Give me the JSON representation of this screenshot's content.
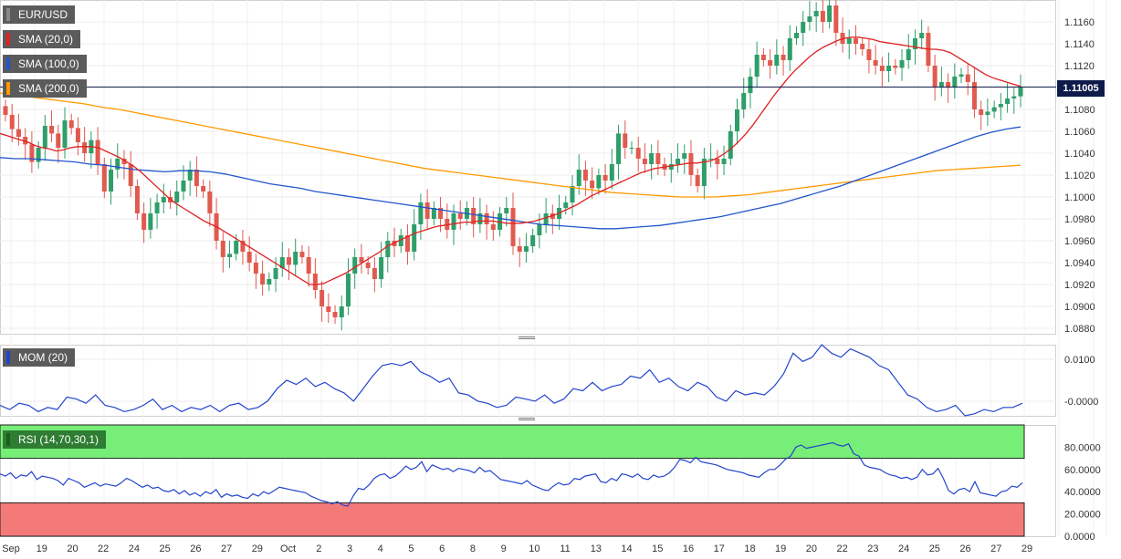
{
  "chart_data": {
    "type": "candlestick",
    "symbol": "EUR/USD",
    "indicators": [
      {
        "label": "SMA (20,0)",
        "color": "#e02020"
      },
      {
        "label": "SMA (100,0)",
        "color": "#2255cc"
      },
      {
        "label": "SMA (200,0)",
        "color": "#ff9900"
      }
    ],
    "last_price": "1.11005",
    "x_ticks": [
      "Sep",
      "19",
      "20",
      "22",
      "24",
      "25",
      "26",
      "27",
      "29",
      "Oct",
      "2",
      "3",
      "4",
      "5",
      "6",
      "8",
      "9",
      "10",
      "11",
      "13",
      "14",
      "15",
      "16",
      "17",
      "18",
      "19",
      "20",
      "22",
      "23",
      "24",
      "25",
      "26",
      "27",
      "29"
    ],
    "y_ticks": [
      "1.1160",
      "1.1140",
      "1.1120",
      "1.1100",
      "1.1080",
      "1.1060",
      "1.1040",
      "1.1020",
      "1.1000",
      "1.0980",
      "1.0960",
      "1.0940",
      "1.0920",
      "1.0900",
      "1.0880"
    ],
    "ylim": [
      1.0875,
      1.118
    ],
    "close": [
      1.1075,
      1.1062,
      1.1055,
      1.1048,
      1.1032,
      1.1045,
      1.1065,
      1.1058,
      1.1045,
      1.107,
      1.1063,
      1.105,
      1.104,
      1.1052,
      1.103,
      1.1005,
      1.1025,
      1.1035,
      1.103,
      1.101,
      1.0985,
      1.097,
      1.0985,
      1.0995,
      1.1,
      1.0995,
      1.1005,
      1.1015,
      1.1025,
      1.101,
      1.1005,
      1.0985,
      1.096,
      1.0945,
      1.0948,
      1.096,
      1.095,
      1.094,
      1.093,
      1.092,
      1.0925,
      1.0935,
      1.0945,
      1.0938,
      1.095,
      1.0945,
      1.093,
      1.0915,
      1.09,
      1.0895,
      1.089,
      1.09,
      1.093,
      1.0945,
      1.094,
      1.0935,
      1.0925,
      1.0945,
      1.096,
      1.0955,
      1.0965,
      1.095,
      1.0975,
      1.0995,
      1.098,
      1.099,
      1.098,
      1.097,
      1.0985,
      1.098,
      1.099,
      1.0975,
      1.0985,
      1.0975,
      1.097,
      1.0985,
      1.099,
      1.0955,
      1.095,
      1.0955,
      1.0965,
      1.0975,
      1.0985,
      1.098,
      1.099,
      1.0995,
      1.101,
      1.1025,
      1.1015,
      1.1008,
      1.102,
      1.1015,
      1.103,
      1.1058,
      1.1045,
      1.1045,
      1.1035,
      1.103,
      1.104,
      1.103,
      1.1025,
      1.103,
      1.1035,
      1.104,
      1.102,
      1.101,
      1.1035,
      1.1035,
      1.103,
      1.1035,
      1.106,
      1.108,
      1.1095,
      1.111,
      1.113,
      1.1125,
      1.112,
      1.113,
      1.1125,
      1.1145,
      1.115,
      1.116,
      1.1165,
      1.117,
      1.116,
      1.1175,
      1.115,
      1.114,
      1.1145,
      1.114,
      1.1135,
      1.1125,
      1.112,
      1.1115,
      1.112,
      1.1118,
      1.1125,
      1.1135,
      1.1145,
      1.115,
      1.112,
      1.11,
      1.1105,
      1.11,
      1.111,
      1.1112,
      1.1105,
      1.108,
      1.1075,
      1.1078,
      1.1082,
      1.1085,
      1.109,
      1.1092,
      1.11
    ],
    "sma20": [
      1.1058,
      1.1056,
      1.1054,
      1.1052,
      1.105,
      1.1047,
      1.1045,
      1.1044,
      1.1042,
      1.1043,
      1.1045,
      1.1046,
      1.1046,
      1.1046,
      1.1045,
      1.1042,
      1.1039,
      1.1036,
      1.1032,
      1.1028,
      1.1023,
      1.1017,
      1.1011,
      1.1005,
      1.0999,
      1.0994,
      1.099,
      1.0986,
      1.0982,
      1.0978,
      1.0975,
      1.0972,
      1.0968,
      1.0964,
      1.096,
      1.0956,
      1.0952,
      1.0948,
      1.0944,
      1.094,
      1.0936,
      1.0932,
      1.0928,
      1.0924,
      1.092,
      1.092,
      1.0921,
      1.0924,
      1.0927,
      1.093,
      1.0934,
      1.0938,
      1.0942,
      1.0946,
      1.095,
      1.0955,
      1.0958,
      1.0961,
      1.0964,
      1.0967,
      1.0969,
      1.0971,
      1.0973,
      1.0974,
      1.0975,
      1.0976,
      1.0977,
      1.0977,
      1.0978,
      1.0978,
      1.0978,
      1.0977,
      1.0976,
      1.0976,
      1.0976,
      1.0977,
      1.0978,
      1.098,
      1.0982,
      1.0984,
      1.0987,
      1.099,
      1.0993,
      1.0997,
      1.1001,
      1.1004,
      1.1007,
      1.101,
      1.1013,
      1.1016,
      1.1019,
      1.1022,
      1.1024,
      1.1026,
      1.1027,
      1.1028,
      1.1029,
      1.103,
      1.1031,
      1.1031,
      1.1032,
      1.1033,
      1.1036,
      1.104,
      1.1045,
      1.1051,
      1.1058,
      1.1066,
      1.1075,
      1.1084,
      1.1093,
      1.1101,
      1.1109,
      1.1116,
      1.1122,
      1.1128,
      1.1133,
      1.1137,
      1.114,
      1.1143,
      1.1145,
      1.1146,
      1.1146,
      1.1145,
      1.1144,
      1.1142,
      1.1141,
      1.114,
      1.1139,
      1.1138,
      1.1137,
      1.1136,
      1.1135,
      1.1135,
      1.1134,
      1.1132,
      1.1128,
      1.1124,
      1.112,
      1.1116,
      1.1112,
      1.1109,
      1.1107,
      1.1105,
      1.1103,
      1.1101
    ],
    "sma100": [
      1.1036,
      1.1035,
      1.1035,
      1.1034,
      1.1033,
      1.1032,
      1.103,
      1.1029,
      1.1027,
      1.1025,
      1.1024,
      1.1023,
      1.1024,
      1.1024,
      1.1023,
      1.1021,
      1.1018,
      1.1015,
      1.1012,
      1.101,
      1.1008,
      1.1005,
      1.1003,
      1.1001,
      1.0999,
      1.0997,
      1.0995,
      1.0993,
      1.0991,
      1.0989,
      1.0987,
      1.0985,
      1.0983,
      1.0981,
      1.0979,
      1.0977,
      1.0975,
      1.0974,
      1.0973,
      1.0972,
      1.0971,
      1.0971,
      1.0972,
      1.0973,
      1.0974,
      1.0976,
      1.0978,
      1.098,
      1.0982,
      1.0985,
      1.0988,
      1.0991,
      1.0994,
      1.0998,
      1.1002,
      1.1006,
      1.101,
      1.1015,
      1.102,
      1.1025,
      1.103,
      1.1035,
      1.104,
      1.1045,
      1.105,
      1.1055,
      1.1059,
      1.1062,
      1.1064
    ],
    "sma200": [
      1.1095,
      1.1093,
      1.1091,
      1.1089,
      1.1087,
      1.1085,
      1.1082,
      1.108,
      1.1077,
      1.1074,
      1.1071,
      1.1068,
      1.1065,
      1.1062,
      1.1059,
      1.1056,
      1.1053,
      1.105,
      1.1047,
      1.1044,
      1.1041,
      1.1038,
      1.1035,
      1.1032,
      1.1029,
      1.1026,
      1.1024,
      1.1022,
      1.102,
      1.1018,
      1.1016,
      1.1014,
      1.1012,
      1.101,
      1.1008,
      1.1006,
      1.1004,
      1.1003,
      1.1002,
      1.1001,
      1.1,
      1.1,
      1.1,
      1.1001,
      1.1002,
      1.1004,
      1.1006,
      1.1008,
      1.101,
      1.1012,
      1.1014,
      1.1016,
      1.1018,
      1.102,
      1.1022,
      1.1024,
      1.1025,
      1.1026,
      1.1027,
      1.1028,
      1.1029
    ],
    "mom": {
      "label": "MOM (20)",
      "y_ticks": [
        "0.0100",
        "-0.0000"
      ],
      "ylim": [
        -0.0035,
        0.0135
      ],
      "values": [
        -0.001,
        -0.002,
        -0.0005,
        -0.001,
        -0.0025,
        -0.0015,
        -0.002,
        0.001,
        0.0005,
        -0.0005,
        0.0015,
        -0.001,
        -0.0015,
        -0.0025,
        -0.002,
        -0.001,
        0.0005,
        -0.002,
        -0.001,
        -0.0025,
        -0.0015,
        -0.002,
        -0.001,
        -0.0025,
        -0.001,
        -0.0005,
        -0.002,
        -0.0015,
        0.0,
        0.003,
        0.005,
        0.004,
        0.0055,
        0.0035,
        0.0045,
        0.003,
        0.002,
        0.0,
        0.003,
        0.006,
        0.0085,
        0.009,
        0.0085,
        0.0095,
        0.007,
        0.006,
        0.0045,
        0.0055,
        0.002,
        0.0015,
        0.0,
        -0.0005,
        -0.0015,
        -0.001,
        0.001,
        0.0005,
        0.0,
        0.0015,
        -0.0005,
        0.0005,
        0.003,
        0.0025,
        0.0045,
        0.0025,
        0.0035,
        0.004,
        0.006,
        0.0055,
        0.0075,
        0.0045,
        0.0055,
        0.0035,
        0.0025,
        0.0045,
        0.0035,
        0.001,
        0.0,
        0.0025,
        0.0015,
        0.002,
        0.0015,
        0.0035,
        0.0065,
        0.0115,
        0.0095,
        0.0105,
        0.0135,
        0.0115,
        0.0105,
        0.0125,
        0.0115,
        0.0105,
        0.0085,
        0.0075,
        0.0045,
        0.0015,
        0.0005,
        -0.0015,
        -0.0025,
        -0.002,
        -0.001,
        -0.0035,
        -0.003,
        -0.002,
        -0.0025,
        -0.0015,
        -0.0015,
        -0.0005
      ],
      "color": "#2244cc"
    },
    "rsi": {
      "label": "RSI (14,70,30,1)",
      "y_ticks": [
        "80.0000",
        "60.0000",
        "40.0000",
        "20.0000",
        "0.0000"
      ],
      "ylim": [
        0,
        100
      ],
      "overbought": 70,
      "oversold": 30,
      "values": [
        56,
        54,
        57,
        52,
        55,
        54,
        58,
        51,
        54,
        53,
        52,
        50,
        46,
        52,
        50,
        48,
        44,
        46,
        48,
        45,
        47,
        46,
        45,
        48,
        52,
        50,
        47,
        44,
        46,
        43,
        44,
        41,
        40,
        42,
        38,
        41,
        37,
        39,
        36,
        40,
        38,
        42,
        35,
        38,
        36,
        37,
        35,
        34,
        38,
        36,
        40,
        38,
        41,
        44,
        43,
        42,
        41,
        40,
        39,
        36,
        34,
        32,
        31,
        29,
        31,
        28,
        27,
        36,
        43,
        42,
        46,
        52,
        55,
        56,
        52,
        54,
        58,
        63,
        60,
        62,
        67,
        58,
        64,
        62,
        60,
        61,
        58,
        61,
        60,
        59,
        57,
        62,
        58,
        59,
        55,
        51,
        50,
        49,
        48,
        47,
        50,
        46,
        44,
        42,
        41,
        45,
        48,
        46,
        47,
        52,
        51,
        54,
        55,
        56,
        49,
        48,
        52,
        50,
        56,
        55,
        53,
        56,
        52,
        51,
        55,
        53,
        54,
        57,
        62,
        69,
        68,
        66,
        71,
        67,
        66,
        65,
        64,
        62,
        60,
        59,
        58,
        57,
        55,
        54,
        53,
        57,
        60,
        60,
        64,
        69,
        72,
        80,
        82,
        79,
        80,
        81,
        82,
        83,
        84,
        82,
        81,
        83,
        74,
        72,
        64,
        62,
        61,
        60,
        57,
        55,
        54,
        52,
        53,
        51,
        53,
        60,
        55,
        56,
        61,
        52,
        41,
        38,
        42,
        43,
        40,
        49,
        39,
        38,
        37,
        36,
        40,
        41,
        45,
        44,
        48
      ]
    }
  }
}
